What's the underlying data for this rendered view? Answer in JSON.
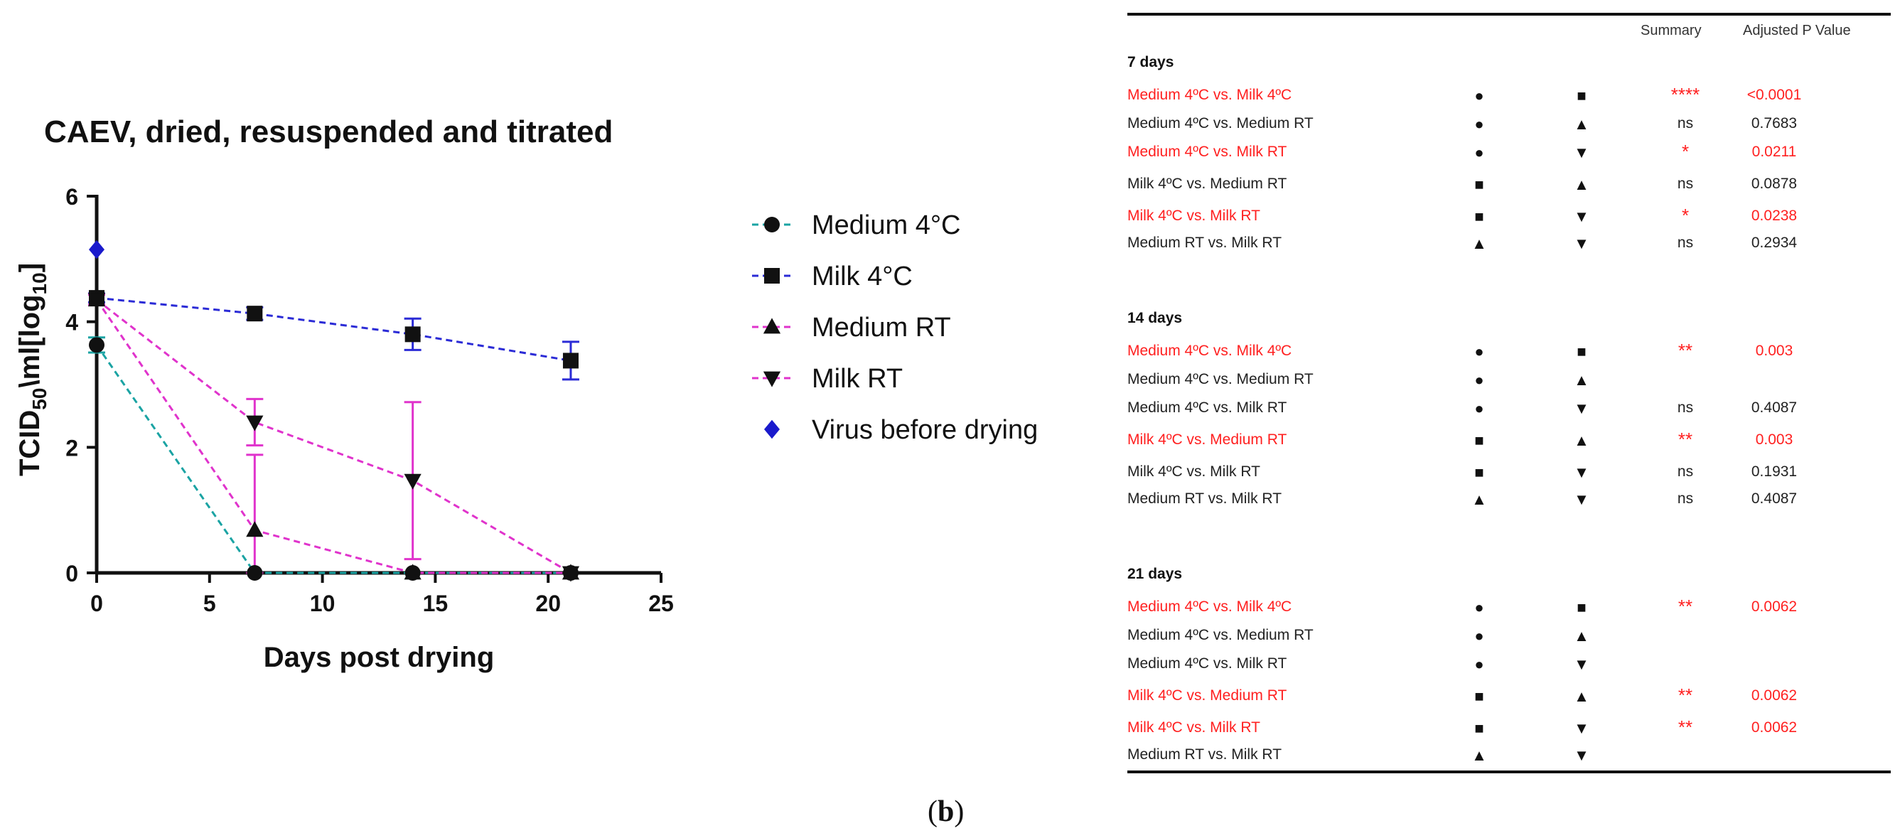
{
  "chart_data": {
    "type": "line",
    "title": "CAEV, dried, resuspended and titrated",
    "xlabel": "Days post drying",
    "ylabel_parts": {
      "base": "TCID",
      "sub1": "50",
      "mid": "\\ml[log",
      "sub2": "10",
      "end": "]"
    },
    "xlim": [
      0,
      25
    ],
    "ylim": [
      0,
      6
    ],
    "xticks": [
      0,
      5,
      10,
      15,
      20,
      25
    ],
    "yticks": [
      0,
      2,
      4,
      6
    ],
    "x": [
      0,
      7,
      14,
      21
    ],
    "series": [
      {
        "name": "Medium 4°C",
        "marker": "circle",
        "line_color": "#1aa3a3",
        "values": [
          3.63,
          0,
          0,
          0
        ],
        "errors": [
          0.12,
          0,
          0,
          0
        ]
      },
      {
        "name": "Milk 4°C",
        "marker": "square",
        "line_color": "#2b2bd6",
        "values": [
          4.38,
          4.13,
          3.8,
          3.38
        ],
        "errors": [
          0.07,
          0.1,
          0.25,
          0.3
        ]
      },
      {
        "name": "Medium RT",
        "marker": "triangle-up",
        "line_color": "#e033cc",
        "values": [
          4.35,
          0.68,
          0,
          0
        ],
        "errors": [
          0.08,
          1.2,
          0,
          0
        ]
      },
      {
        "name": "Milk RT",
        "marker": "triangle-down",
        "line_color": "#e033cc",
        "values": [
          4.35,
          2.4,
          1.47,
          0
        ],
        "errors": [
          0.08,
          0.37,
          1.25,
          0
        ]
      }
    ],
    "extra_points": [
      {
        "name": "Virus before drying",
        "marker": "diamond",
        "color": "#1a1acc",
        "x": 0,
        "y": 5.15
      }
    ]
  },
  "table": {
    "headers": {
      "summary": "Summary",
      "pvalue": "Adjusted P Value"
    },
    "groups": [
      {
        "title": "7 days",
        "rows": [
          {
            "comparison": "Medium 4ºC vs. Milk 4ºC",
            "sym1": "●",
            "sym2": "■",
            "summary": "****",
            "pvalue": "<0.0001",
            "significant": true
          },
          {
            "comparison": "Medium 4ºC vs. Medium RT",
            "sym1": "●",
            "sym2": "▲",
            "summary": "ns",
            "pvalue": "0.7683",
            "significant": false
          },
          {
            "comparison": "Medium 4ºC vs. Milk RT",
            "sym1": "●",
            "sym2": "▼",
            "summary": "*",
            "pvalue": "0.0211",
            "significant": true
          },
          {
            "comparison": "Milk 4ºC vs. Medium RT",
            "sym1": "■",
            "sym2": "▲",
            "summary": "ns",
            "pvalue": "0.0878",
            "significant": false
          },
          {
            "comparison": "Milk 4ºC vs. Milk RT",
            "sym1": "■",
            "sym2": "▼",
            "summary": "*",
            "pvalue": "0.0238",
            "significant": true
          },
          {
            "comparison": "Medium RT vs. Milk RT",
            "sym1": "▲",
            "sym2": "▼",
            "summary": "ns",
            "pvalue": "0.2934",
            "significant": false
          }
        ]
      },
      {
        "title": "14 days",
        "rows": [
          {
            "comparison": "Medium 4ºC vs. Milk 4ºC",
            "sym1": "●",
            "sym2": "■",
            "summary": "**",
            "pvalue": "0.003",
            "significant": true
          },
          {
            "comparison": "Medium 4ºC vs. Medium RT",
            "sym1": "●",
            "sym2": "▲",
            "summary": "",
            "pvalue": "",
            "significant": false
          },
          {
            "comparison": "Medium 4ºC vs. Milk RT",
            "sym1": "●",
            "sym2": "▼",
            "summary": "ns",
            "pvalue": "0.4087",
            "significant": false
          },
          {
            "comparison": "Milk 4ºC vs. Medium RT",
            "sym1": "■",
            "sym2": "▲",
            "summary": "**",
            "pvalue": "0.003",
            "significant": true
          },
          {
            "comparison": "Milk 4ºC vs. Milk RT",
            "sym1": "■",
            "sym2": "▼",
            "summary": "ns",
            "pvalue": "0.1931",
            "significant": false
          },
          {
            "comparison": "Medium RT vs. Milk RT",
            "sym1": "▲",
            "sym2": "▼",
            "summary": "ns",
            "pvalue": "0.4087",
            "significant": false
          }
        ]
      },
      {
        "title": "21 days",
        "rows": [
          {
            "comparison": "Medium 4ºC vs. Milk 4ºC",
            "sym1": "●",
            "sym2": "■",
            "summary": "**",
            "pvalue": "0.0062",
            "significant": true
          },
          {
            "comparison": "Medium 4ºC vs. Medium RT",
            "sym1": "●",
            "sym2": "▲",
            "summary": "",
            "pvalue": "",
            "significant": false
          },
          {
            "comparison": "Medium 4ºC vs. Milk RT",
            "sym1": "●",
            "sym2": "▼",
            "summary": "",
            "pvalue": "",
            "significant": false
          },
          {
            "comparison": "Milk 4ºC vs. Medium RT",
            "sym1": "■",
            "sym2": "▲",
            "summary": "**",
            "pvalue": "0.0062",
            "significant": true
          },
          {
            "comparison": "Milk 4ºC vs. Milk RT",
            "sym1": "■",
            "sym2": "▼",
            "summary": "**",
            "pvalue": "0.0062",
            "significant": true
          },
          {
            "comparison": "Medium RT vs. Milk RT",
            "sym1": "▲",
            "sym2": "▼",
            "summary": "",
            "pvalue": "",
            "significant": false
          }
        ]
      }
    ]
  },
  "panel_label": {
    "open": "(",
    "letter": "b",
    "close": ")"
  }
}
